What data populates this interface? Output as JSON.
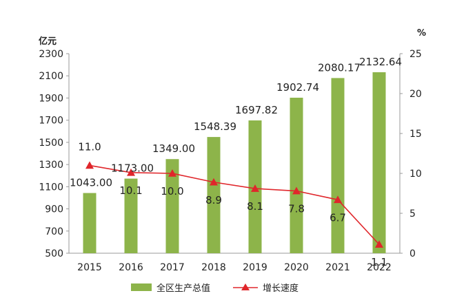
{
  "chart_data": {
    "type": "bar",
    "categories": [
      "2015",
      "2016",
      "2017",
      "2018",
      "2019",
      "2020",
      "2021",
      "2022"
    ],
    "series": [
      {
        "name": "全区生产总值",
        "type": "bar",
        "axis": "left",
        "color": "#8db44a",
        "values": [
          1043.0,
          1173.0,
          1349.0,
          1548.39,
          1697.82,
          1902.74,
          2080.17,
          2132.64
        ],
        "labels": [
          "1043.00",
          "1173.00",
          "1349.00",
          "1548.39",
          "1697.82",
          "1902.74",
          "2080.17",
          "2132.64"
        ]
      },
      {
        "name": "增长速度",
        "type": "line",
        "axis": "right",
        "color": "#e0262b",
        "marker": "triangle",
        "values": [
          11.0,
          10.1,
          10.0,
          8.9,
          8.1,
          7.8,
          6.7,
          1.1
        ],
        "labels": [
          "11.0",
          "10.1",
          "10.0",
          "8.9",
          "8.1",
          "7.8",
          "6.7",
          "1.1"
        ]
      }
    ],
    "y_left": {
      "unit": "亿元",
      "range": [
        500,
        2300
      ],
      "ticks": [
        "500",
        "700",
        "900",
        "1100",
        "1300",
        "1500",
        "1700",
        "1900",
        "2100",
        "2300"
      ]
    },
    "y_right": {
      "unit": "%",
      "range": [
        0,
        25
      ],
      "ticks": [
        "0",
        "5",
        "10",
        "15",
        "20",
        "25"
      ]
    },
    "grid": false,
    "legend_position": "bottom"
  }
}
